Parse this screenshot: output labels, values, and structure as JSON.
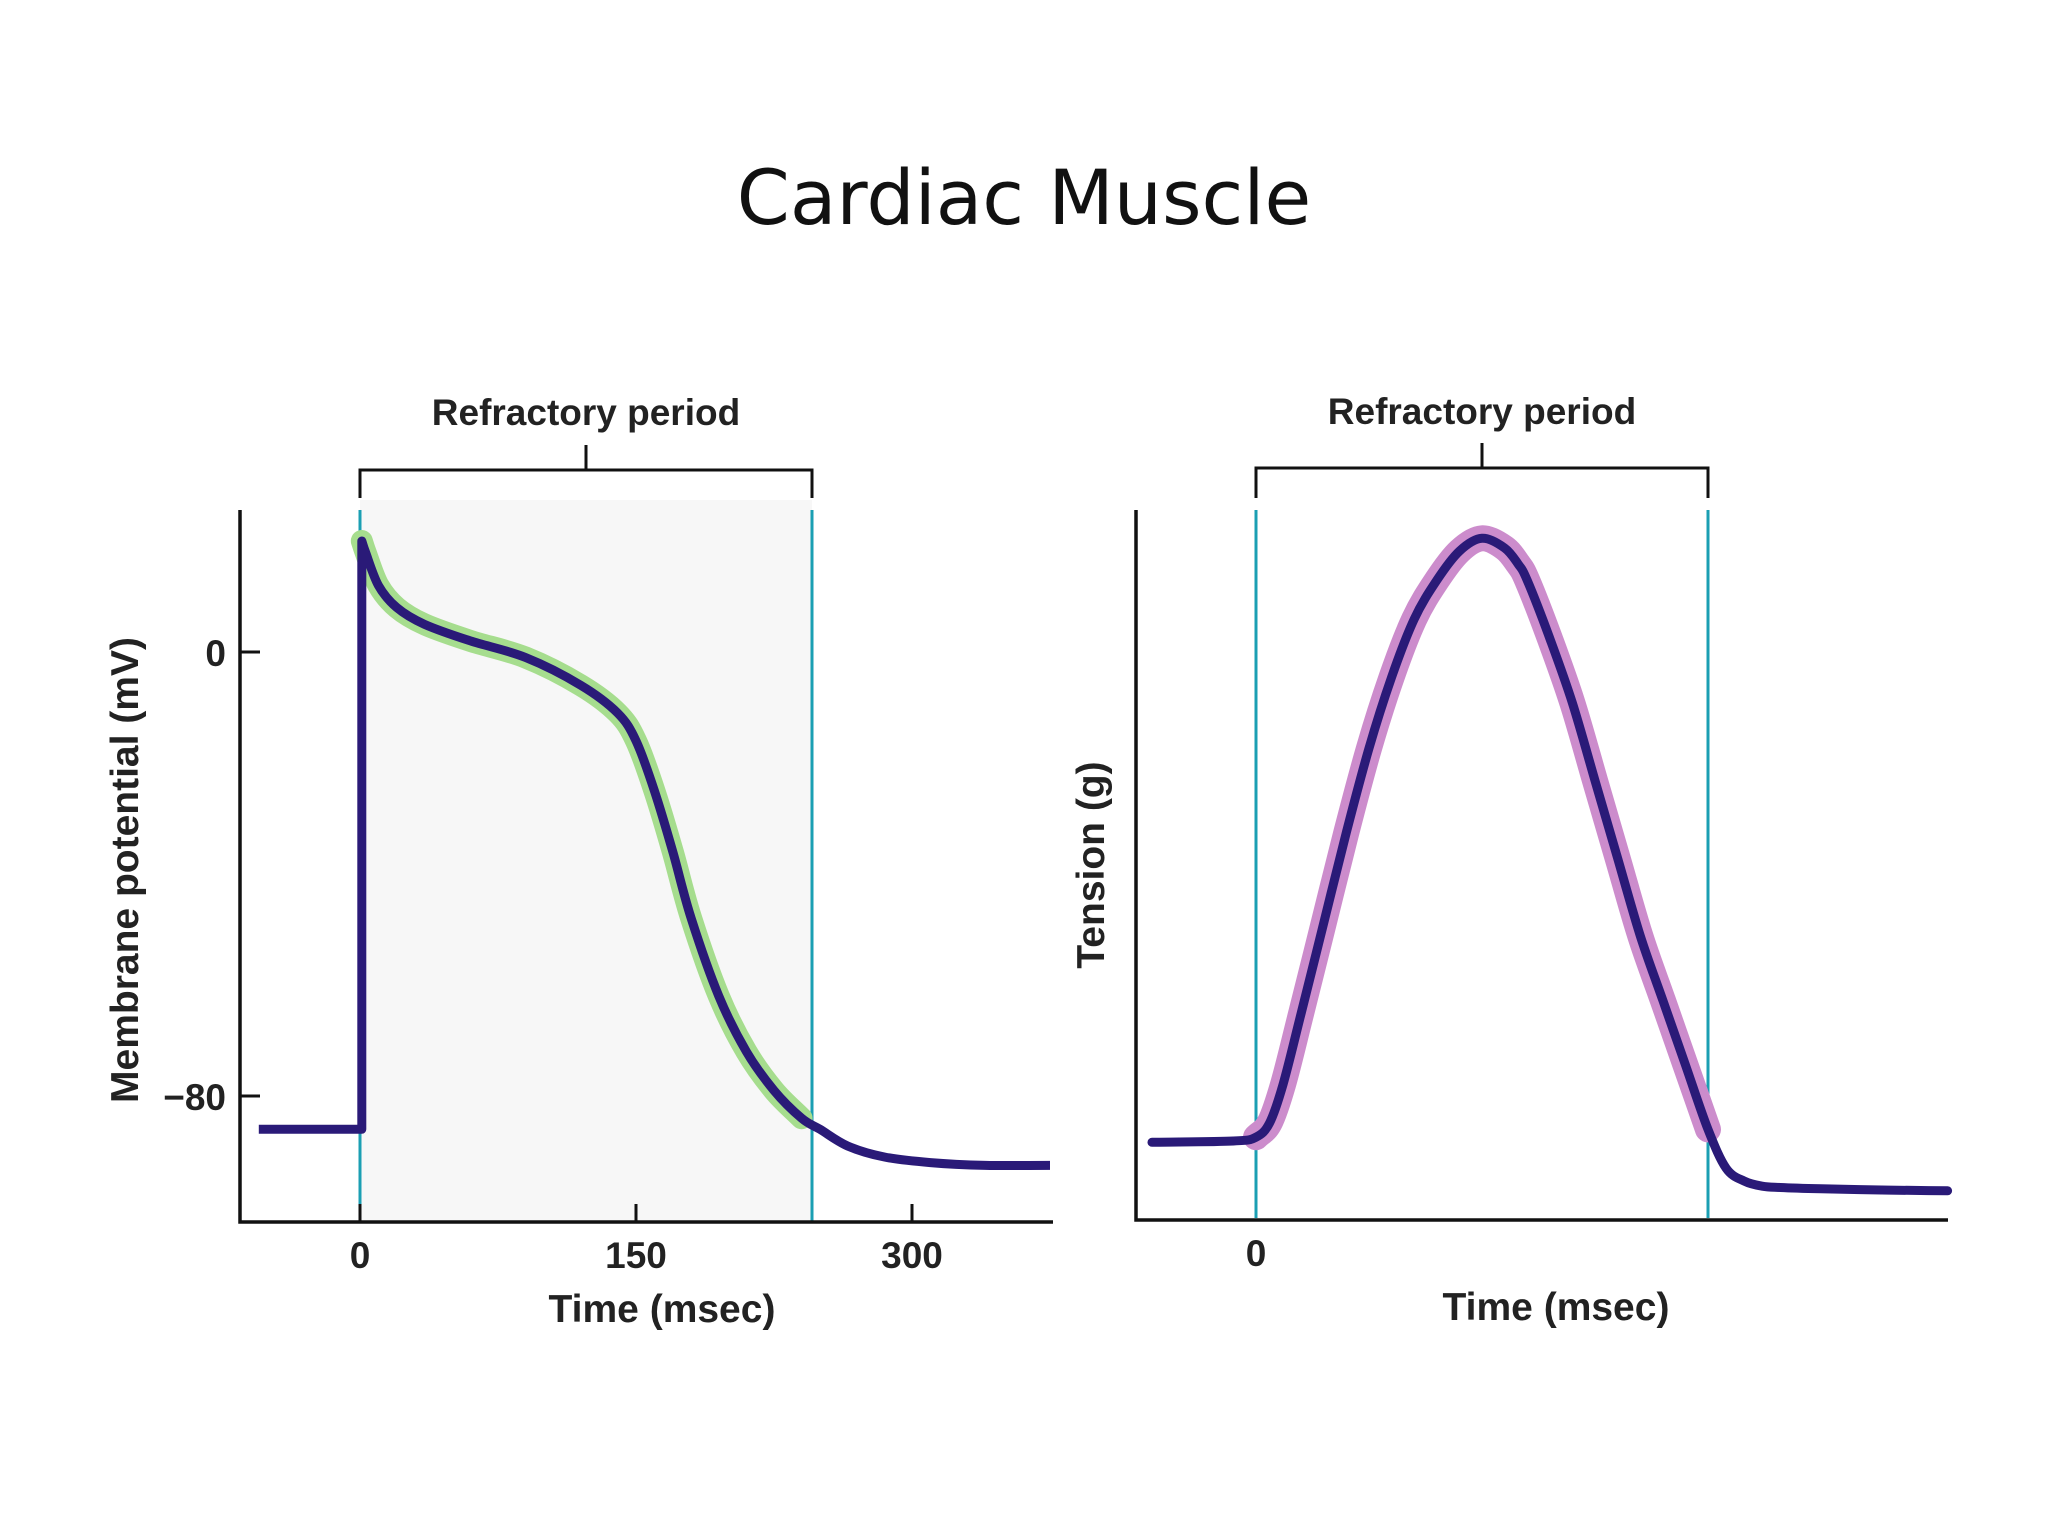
{
  "slide": {
    "title": "Cardiac Muscle"
  },
  "colors": {
    "trace": "#2a1a78",
    "halo_left": "#a6dd8e",
    "halo_right": "#cc8ccc",
    "marker": "#1b9fb3",
    "axis": "#111111",
    "plot_bg": "#f7f7f7"
  },
  "chart_data": [
    {
      "type": "line",
      "title": "",
      "bracket_label": "Refractory period",
      "refractory_period": [
        0,
        245
      ],
      "xlabel": "Time (msec)",
      "ylabel": "Membrane potential (mV)",
      "xlim": [
        -65,
        375
      ],
      "ylim": [
        -102,
        25
      ],
      "xticks": [
        0,
        150,
        300
      ],
      "xtick_labels": [
        "0",
        "150",
        "300"
      ],
      "yticks": [
        0,
        -80
      ],
      "ytick_labels": [
        "0",
        "−80"
      ],
      "grid": false,
      "series": [
        {
          "x": [
            -55,
            1,
            1,
            3,
            10,
            20,
            35,
            60,
            90,
            120,
            140,
            150,
            160,
            170,
            180,
            195,
            210,
            225,
            240,
            250,
            265,
            285,
            310,
            340,
            375
          ],
          "y": [
            -86,
            -86,
            20,
            18,
            12,
            8,
            5,
            2,
            -1,
            -6,
            -11,
            -16,
            -25,
            -36,
            -48,
            -62,
            -72,
            -79,
            -84,
            -86,
            -89,
            -91,
            -92,
            -92.5,
            -92.5
          ]
        }
      ]
    },
    {
      "type": "line",
      "title": "",
      "bracket_label": "Refractory period",
      "refractory_period": [
        0,
        100
      ],
      "xlabel": "Time (msec)",
      "ylabel": "Tension (g)",
      "xlim": [
        -26,
        154
      ],
      "ylim": [
        0,
        100
      ],
      "xticks": [
        0
      ],
      "xtick_labels": [
        "0"
      ],
      "grid": false,
      "series": [
        {
          "x": [
            -23,
            -5,
            0,
            3,
            6,
            10,
            15,
            20,
            25,
            30,
            35,
            40,
            45,
            50,
            55,
            58,
            60,
            65,
            70,
            75,
            80,
            85,
            90,
            95,
            100,
            104,
            108,
            112,
            116,
            125,
            140,
            153
          ],
          "y": [
            8,
            8.2,
            8.8,
            11,
            17,
            28,
            42,
            56,
            69,
            80,
            89,
            95,
            99.5,
            101.5,
            100,
            97.5,
            95,
            86,
            76,
            64,
            52,
            40,
            30,
            20,
            10,
            4,
            2,
            1.2,
            1,
            0.8,
            0.6,
            0.5
          ]
        }
      ]
    }
  ]
}
